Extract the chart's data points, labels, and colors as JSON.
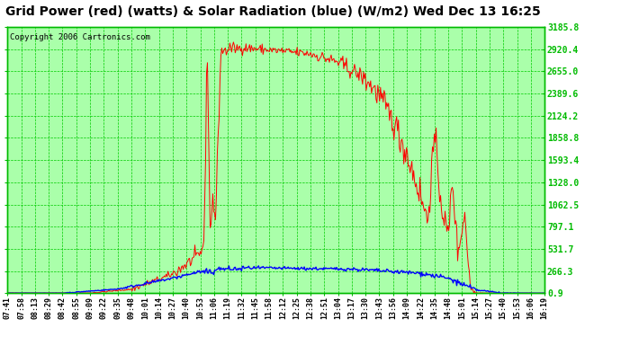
{
  "title": "Grid Power (red) (watts) & Solar Radiation (blue) (W/m2) Wed Dec 13 16:25",
  "copyright": "Copyright 2006 Cartronics.com",
  "plot_bg_color": "#aaffaa",
  "grid_color": "#00cc00",
  "border_color": "#00bb00",
  "yticks": [
    0.9,
    266.3,
    531.7,
    797.1,
    1062.5,
    1328.0,
    1593.4,
    1858.8,
    2124.2,
    2389.6,
    2655.0,
    2920.4,
    3185.8
  ],
  "ymin": 0.9,
  "ymax": 3185.8,
  "xtick_labels": [
    "07:41",
    "07:58",
    "08:13",
    "08:29",
    "08:42",
    "08:55",
    "09:09",
    "09:22",
    "09:35",
    "09:48",
    "10:01",
    "10:14",
    "10:27",
    "10:40",
    "10:53",
    "11:06",
    "11:19",
    "11:32",
    "11:45",
    "11:58",
    "12:12",
    "12:25",
    "12:38",
    "12:51",
    "13:04",
    "13:17",
    "13:30",
    "13:43",
    "13:56",
    "14:09",
    "14:22",
    "14:35",
    "14:48",
    "15:01",
    "15:14",
    "15:27",
    "15:40",
    "15:53",
    "16:06",
    "16:19"
  ],
  "red_color": "#ff0000",
  "blue_color": "#0000ff",
  "title_fontsize": 10,
  "copyright_fontsize": 6.5,
  "fig_bg_color": "#ffffff"
}
